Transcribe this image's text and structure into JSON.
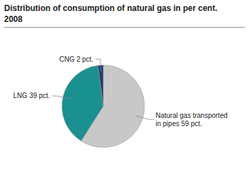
{
  "chart_data": {
    "type": "pie",
    "title": "Distribution of consumption of natural gas in per cent.",
    "subtitle": "2008",
    "categories": [
      "Natural gas transported\nin pipes 59 pct.",
      "LNG 39 pct.",
      "CNG 2 pct."
    ],
    "values": [
      59,
      39,
      2
    ],
    "colors": [
      "#c8c8c8",
      "#1a9090",
      "#1f3a6e"
    ]
  }
}
